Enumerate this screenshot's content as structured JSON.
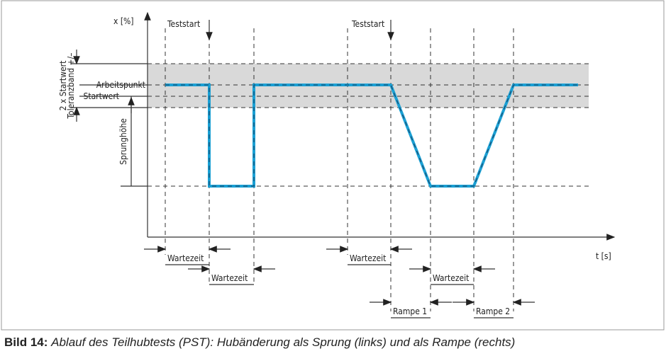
{
  "diagram": {
    "y_axis_label": "x [%]",
    "x_axis_label": "t [s]",
    "teststart_labels": [
      "Teststart",
      "Teststart"
    ],
    "level_labels": {
      "arbeitspunkt": "Arbeitspunkt",
      "startwert": "Startwert",
      "tolerance_line1": "2 x Startwert",
      "tolerance_line2": "Toleranzband +/–",
      "sprunghoehe": "Sprunghöhe"
    },
    "intervals": [
      "Wartezeit",
      "Wartezeit",
      "Wartezeit",
      "Wartezeit",
      "Rampe 1",
      "Rampe 2"
    ]
  },
  "caption": {
    "label": "Bild 14:",
    "text": "Ablauf des Teilhubtests (PST): Hubänderung als Sprung (links) und als Rampe (rechts)"
  }
}
